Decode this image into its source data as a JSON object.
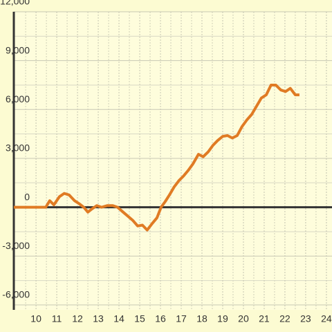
{
  "chart_data": {
    "type": "line",
    "x": [
      8.93,
      10.47,
      10.66,
      10.86,
      11.13,
      11.36,
      11.6,
      11.86,
      12.1,
      12.3,
      12.5,
      12.7,
      12.93,
      13.16,
      13.43,
      13.7,
      13.93,
      14.2,
      14.43,
      14.66,
      14.9,
      15.13,
      15.36,
      15.6,
      15.83,
      16.03,
      16.23,
      16.43,
      16.66,
      16.9,
      17.1,
      17.33,
      17.56,
      17.83,
      18.06,
      18.3,
      18.53,
      18.76,
      19.0,
      19.23,
      19.46,
      19.7,
      19.93,
      20.16,
      20.4,
      20.63,
      20.86,
      21.1,
      21.33,
      21.56,
      21.8,
      22.03,
      22.26,
      22.5,
      22.7
    ],
    "values": [
      0,
      0,
      400,
      150,
      650,
      850,
      750,
      400,
      200,
      0,
      -300,
      -100,
      100,
      0,
      100,
      100,
      0,
      -300,
      -550,
      -800,
      -1150,
      -1100,
      -1400,
      -1000,
      -650,
      0,
      350,
      750,
      1250,
      1650,
      1900,
      2250,
      2650,
      3250,
      3100,
      3400,
      3800,
      4100,
      4350,
      4400,
      4250,
      4400,
      4950,
      5350,
      5700,
      6200,
      6700,
      6900,
      7500,
      7500,
      7200,
      7100,
      7300,
      6900,
      6900
    ],
    "color": "#e07b24",
    "xlim": [
      8.93,
      24.27
    ],
    "xticks": [
      10,
      11,
      12,
      13,
      14,
      15,
      16,
      17,
      18,
      19,
      20,
      21,
      22,
      23,
      24
    ],
    "ylim": [
      -6300,
      12000
    ],
    "yticks": [
      {
        "value": -6000,
        "label": "-6,000"
      },
      {
        "value": -3000,
        "label": "-3,000"
      },
      0,
      {
        "value": 3000,
        "label": "3,000"
      },
      {
        "value": 6000,
        "label": "6,000"
      },
      {
        "value": 9000,
        "label": "9,000"
      },
      {
        "value": 12000,
        "label": "12,000"
      }
    ],
    "grid": true
  }
}
